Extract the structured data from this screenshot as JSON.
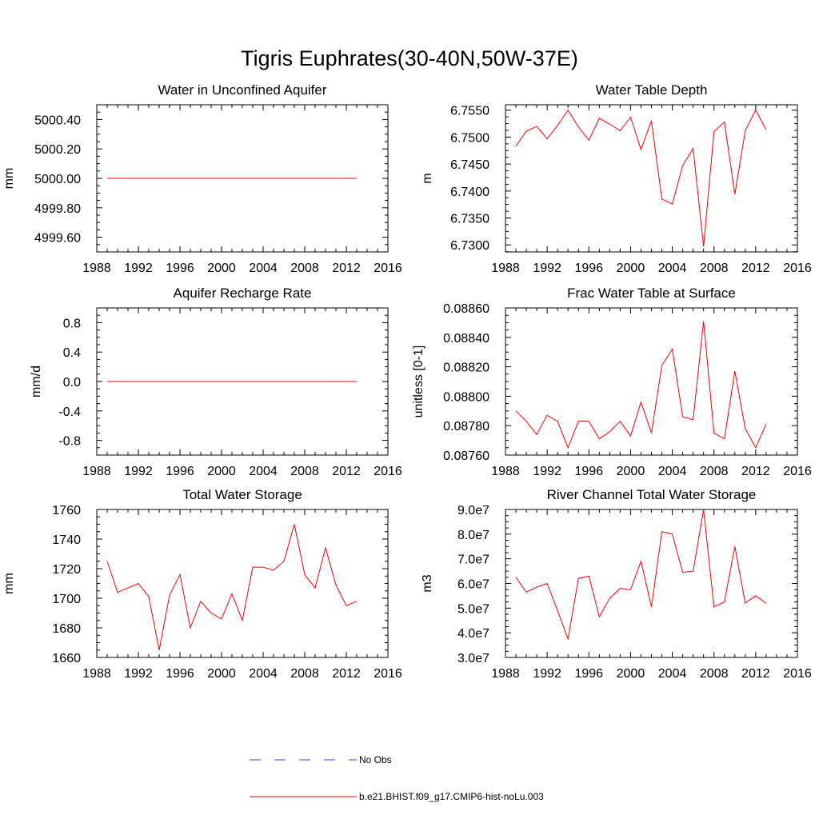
{
  "figure": {
    "title": "Tigris Euphrates(30-40N,50W-37E)"
  },
  "legend": {
    "entries": [
      {
        "label": "No Obs",
        "color": "#3b3bff",
        "style": "dashed"
      },
      {
        "label": "b.e21.BHIST.f09_g17.CMIP6-hist-noLu.003",
        "color": "#ff0000",
        "style": "solid"
      }
    ]
  },
  "chart_data": [
    {
      "type": "line",
      "title": "Water in Unconfined Aquifer",
      "ylabel": "mm",
      "xlim": [
        1988,
        2016
      ],
      "ylim": [
        4999.5,
        5000.5
      ],
      "xticks": [
        "1988",
        "1992",
        "1996",
        "2000",
        "2004",
        "2008",
        "2012",
        "2016"
      ],
      "yticks": [
        "4999.60",
        "4999.80",
        "5000.00",
        "5000.20",
        "5000.40"
      ],
      "x": [
        1989,
        1990,
        1991,
        1992,
        1993,
        1994,
        1995,
        1996,
        1997,
        1998,
        1999,
        2000,
        2001,
        2002,
        2003,
        2004,
        2005,
        2006,
        2007,
        2008,
        2009,
        2010,
        2011,
        2012,
        2013
      ],
      "series": [
        {
          "color": "#ff0000",
          "values": [
            5000,
            5000,
            5000,
            5000,
            5000,
            5000,
            5000,
            5000,
            5000,
            5000,
            5000,
            5000,
            5000,
            5000,
            5000,
            5000,
            5000,
            5000,
            5000,
            5000,
            5000,
            5000,
            5000,
            5000,
            5000
          ]
        }
      ]
    },
    {
      "type": "line",
      "title": "Water Table Depth",
      "ylabel": "m",
      "xlim": [
        1988,
        2016
      ],
      "ylim": [
        6.7287,
        6.756
      ],
      "xticks": [
        "1988",
        "1992",
        "1996",
        "2000",
        "2004",
        "2008",
        "2012",
        "2016"
      ],
      "yticks": [
        "6.7300",
        "6.7350",
        "6.7400",
        "6.7450",
        "6.7500",
        "6.7550"
      ],
      "x": [
        1989,
        1990,
        1991,
        1992,
        1993,
        1994,
        1995,
        1996,
        1997,
        1998,
        1999,
        2000,
        2001,
        2002,
        2003,
        2004,
        2005,
        2006,
        2007,
        2008,
        2009,
        2010,
        2011,
        2012,
        2013
      ],
      "series": [
        {
          "color": "#ff0000",
          "values": [
            6.7483,
            6.7511,
            6.752,
            6.7497,
            6.7522,
            6.755,
            6.7519,
            6.7494,
            6.7535,
            6.7524,
            6.7512,
            6.7537,
            6.7477,
            6.753,
            6.7385,
            6.7376,
            6.7447,
            6.7479,
            6.7297,
            6.751,
            6.7528,
            6.7394,
            6.7512,
            6.755,
            6.7514
          ]
        }
      ]
    },
    {
      "type": "line",
      "title": "Aquifer Recharge Rate",
      "ylabel": "mm/d",
      "xlim": [
        1988,
        2016
      ],
      "ylim": [
        -1.0,
        1.0
      ],
      "xticks": [
        "1988",
        "1992",
        "1996",
        "2000",
        "2004",
        "2008",
        "2012",
        "2016"
      ],
      "yticks": [
        "-0.8",
        "-0.4",
        "0.0",
        "0.4",
        "0.8"
      ],
      "x": [
        1989,
        1990,
        1991,
        1992,
        1993,
        1994,
        1995,
        1996,
        1997,
        1998,
        1999,
        2000,
        2001,
        2002,
        2003,
        2004,
        2005,
        2006,
        2007,
        2008,
        2009,
        2010,
        2011,
        2012,
        2013
      ],
      "series": [
        {
          "color": "#ff0000",
          "values": [
            0,
            0,
            0,
            0,
            0,
            0,
            0,
            0,
            0,
            0,
            0,
            0,
            0,
            0,
            0,
            0,
            0,
            0,
            0,
            0,
            0,
            0,
            0,
            0,
            0
          ]
        }
      ]
    },
    {
      "type": "line",
      "title": "Frac Water Table at Surface",
      "ylabel": "unitless [0-1]",
      "xlim": [
        1988,
        2016
      ],
      "ylim": [
        0.0876,
        0.0886
      ],
      "xticks": [
        "1988",
        "1992",
        "1996",
        "2000",
        "2004",
        "2008",
        "2012",
        "2016"
      ],
      "yticks": [
        "0.08760",
        "0.08780",
        "0.08800",
        "0.08820",
        "0.08840",
        "0.08860"
      ],
      "x": [
        1989,
        1990,
        1991,
        1992,
        1993,
        1994,
        1995,
        1996,
        1997,
        1998,
        1999,
        2000,
        2001,
        2002,
        2003,
        2004,
        2005,
        2006,
        2007,
        2008,
        2009,
        2010,
        2011,
        2012,
        2013
      ],
      "series": [
        {
          "color": "#ff0000",
          "values": [
            0.0879,
            0.08783,
            0.08774,
            0.08787,
            0.08783,
            0.08765,
            0.08783,
            0.08783,
            0.08771,
            0.08776,
            0.08783,
            0.08773,
            0.08796,
            0.08775,
            0.08821,
            0.08832,
            0.08786,
            0.08784,
            0.08851,
            0.08775,
            0.08771,
            0.08817,
            0.08778,
            0.08765,
            0.08781
          ]
        }
      ]
    },
    {
      "type": "line",
      "title": "Total Water Storage",
      "ylabel": "mm",
      "xlim": [
        1988,
        2016
      ],
      "ylim": [
        1660,
        1760
      ],
      "xticks": [
        "1988",
        "1992",
        "1996",
        "2000",
        "2004",
        "2008",
        "2012",
        "2016"
      ],
      "yticks": [
        "1660",
        "1680",
        "1700",
        "1720",
        "1740",
        "1760"
      ],
      "x": [
        1989,
        1990,
        1991,
        1992,
        1993,
        1994,
        1995,
        1996,
        1997,
        1998,
        1999,
        2000,
        2001,
        2002,
        2003,
        2004,
        2005,
        2006,
        2007,
        2008,
        2009,
        2010,
        2011,
        2012,
        2013
      ],
      "series": [
        {
          "color": "#ff0000",
          "values": [
            1725,
            1704,
            1707,
            1710,
            1701,
            1665,
            1702,
            1716,
            1680,
            1698,
            1690,
            1686,
            1703,
            1685,
            1721,
            1721,
            1719,
            1725,
            1750,
            1716,
            1707,
            1734,
            1709,
            1695,
            1698
          ]
        }
      ]
    },
    {
      "type": "line",
      "title": "River Channel Total Water Storage",
      "ylabel": "m3",
      "xlim": [
        1988,
        2016
      ],
      "ylim": [
        30000000,
        90000000
      ],
      "xticks": [
        "1988",
        "1992",
        "1996",
        "2000",
        "2004",
        "2008",
        "2012",
        "2016"
      ],
      "yticks": [
        "3.0e7",
        "4.0e7",
        "5.0e7",
        "6.0e7",
        "7.0e7",
        "8.0e7",
        "9.0e7"
      ],
      "x": [
        1989,
        1990,
        1991,
        1992,
        1993,
        1994,
        1995,
        1996,
        1997,
        1998,
        1999,
        2000,
        2001,
        2002,
        2003,
        2004,
        2005,
        2006,
        2007,
        2008,
        2009,
        2010,
        2011,
        2012,
        2013
      ],
      "series": [
        {
          "color": "#ff0000",
          "values": [
            62500000,
            56500000,
            58500000,
            60000000,
            49000000,
            37500000,
            62000000,
            63000000,
            46500000,
            54000000,
            58000000,
            57500000,
            69000000,
            50500000,
            81000000,
            80000000,
            64500000,
            65000000,
            90000000,
            50500000,
            52500000,
            75000000,
            52000000,
            55000000,
            52000000
          ]
        }
      ]
    }
  ]
}
